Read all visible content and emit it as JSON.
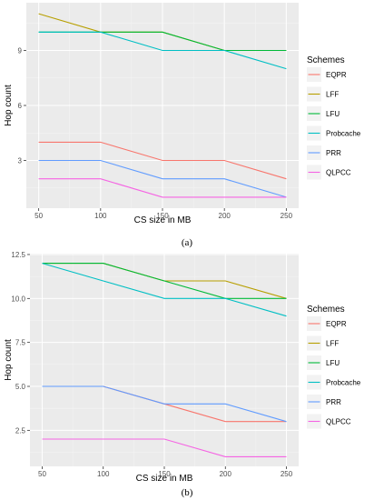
{
  "chart_data": [
    {
      "type": "line",
      "caption": "(a)",
      "xlabel": "CS size in MB",
      "ylabel": "Hop count",
      "x": [
        50,
        100,
        150,
        200,
        250
      ],
      "xticks": [
        50,
        100,
        150,
        200,
        250
      ],
      "yticks": [
        3,
        6,
        9
      ],
      "ylim": [
        0.4,
        11.6
      ],
      "grid": true,
      "legend_title": "Schemes",
      "legend_position": "right",
      "series": [
        {
          "name": "EQPR",
          "color": "#F8766D",
          "values": [
            4,
            4,
            3,
            3,
            2
          ]
        },
        {
          "name": "LFF",
          "color": "#B79F00",
          "values": [
            11,
            10,
            10,
            9,
            9
          ]
        },
        {
          "name": "LFU",
          "color": "#00BA38",
          "values": [
            10,
            10,
            10,
            9,
            9
          ]
        },
        {
          "name": "Probcache",
          "color": "#00BFC4",
          "values": [
            10,
            10,
            9,
            9,
            8
          ]
        },
        {
          "name": "PRR",
          "color": "#619CFF",
          "values": [
            3,
            3,
            2,
            2,
            1
          ]
        },
        {
          "name": "QLPCC",
          "color": "#F564E3",
          "values": [
            2,
            2,
            1,
            1,
            1
          ]
        }
      ]
    },
    {
      "type": "line",
      "caption": "(b)",
      "xlabel": "CS size in MB",
      "ylabel": "Hop count",
      "x": [
        50,
        100,
        150,
        200,
        250
      ],
      "xticks": [
        50,
        100,
        150,
        200,
        250
      ],
      "yticks": [
        2.5,
        5.0,
        7.5,
        10.0,
        12.5
      ],
      "ytick_labels": [
        "2.5",
        "5.0",
        "7.5",
        "10.0",
        "12.5"
      ],
      "ylim": [
        0.45,
        12.55
      ],
      "grid": true,
      "legend_title": "Schemes",
      "legend_position": "right",
      "series": [
        {
          "name": "EQPR",
          "color": "#F8766D",
          "values": [
            5,
            5,
            4,
            3,
            3
          ]
        },
        {
          "name": "LFF",
          "color": "#B79F00",
          "values": [
            12,
            12,
            11,
            11,
            10
          ]
        },
        {
          "name": "LFU",
          "color": "#00BA38",
          "values": [
            12,
            12,
            11,
            10,
            10
          ]
        },
        {
          "name": "Probcache",
          "color": "#00BFC4",
          "values": [
            12,
            11,
            10,
            10,
            9
          ]
        },
        {
          "name": "PRR",
          "color": "#619CFF",
          "values": [
            5,
            5,
            4,
            4,
            3
          ]
        },
        {
          "name": "QLPCC",
          "color": "#F564E3",
          "values": [
            2,
            2,
            2,
            1,
            1
          ]
        }
      ]
    }
  ]
}
